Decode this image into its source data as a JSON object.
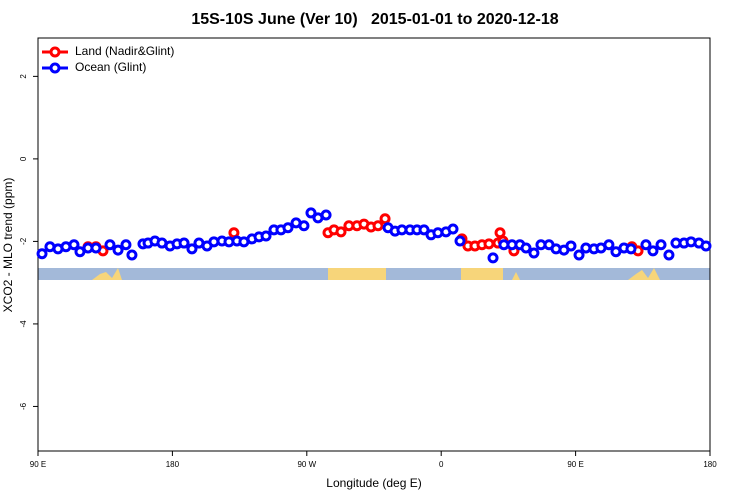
{
  "chart_data": {
    "type": "scatter",
    "title": "15S-10S June (Ver 10)   2015-01-01 to 2020-12-18",
    "x_label": "Longitude (deg E)",
    "y_label": "XCO2 - MLO trend (ppm)",
    "xlim": [
      90,
      540
    ],
    "xticks": [
      {
        "value": 90,
        "label": "90 E"
      },
      {
        "value": 180,
        "label": "180"
      },
      {
        "value": 270,
        "label": "90 W"
      },
      {
        "value": 360,
        "label": "0"
      },
      {
        "value": 450,
        "label": "90 E"
      },
      {
        "value": 540,
        "label": "180"
      }
    ],
    "ylim": [
      -7.08,
      2.93
    ],
    "yticks": [
      2,
      0,
      -2,
      -4,
      -6
    ],
    "legend": "top-left",
    "series": [
      {
        "name": "Land (Nadir&Glint)",
        "color": "#ff0000",
        "x": [
          123.5,
          128.8,
          133.5,
          221.2,
          284.2,
          288.2,
          292.9,
          298.2,
          303.6,
          308.3,
          313.0,
          317.7,
          322.4,
          373.9,
          377.9,
          382.6,
          387.3,
          392.0,
          398.0,
          399.4,
          401.4,
          408.7,
          487.7,
          491.8
        ],
        "values": [
          -2.13,
          -2.13,
          -2.23,
          -1.79,
          -1.79,
          -1.72,
          -1.77,
          -1.62,
          -1.62,
          -1.58,
          -1.65,
          -1.62,
          -1.45,
          -1.94,
          -2.11,
          -2.11,
          -2.08,
          -2.06,
          -2.04,
          -1.79,
          -1.99,
          -2.23,
          -2.13,
          -2.23
        ]
      },
      {
        "name": "Ocean (Glint)",
        "color": "#0000ff",
        "x": [
          92.7,
          98.0,
          103.4,
          108.7,
          114.1,
          118.1,
          123.5,
          128.8,
          138.2,
          143.6,
          148.9,
          152.9,
          160.3,
          163.7,
          168.3,
          173.0,
          178.4,
          183.1,
          187.8,
          193.1,
          197.8,
          203.2,
          207.8,
          213.2,
          217.9,
          223.2,
          227.9,
          233.3,
          238.0,
          242.7,
          248.0,
          252.7,
          257.4,
          262.8,
          268.1,
          272.8,
          277.5,
          282.9,
          324.4,
          329.1,
          333.7,
          339.1,
          343.8,
          348.5,
          353.2,
          357.8,
          363.2,
          367.9,
          372.6,
          394.7,
          402.0,
          407.4,
          412.7,
          416.8,
          422.1,
          426.8,
          432.2,
          436.9,
          442.2,
          446.9,
          452.3,
          456.9,
          462.3,
          467.0,
          472.3,
          477.0,
          482.4,
          487.1,
          497.1,
          501.8,
          507.2,
          512.5,
          517.2,
          522.6,
          527.3,
          532.6,
          537.3
        ],
        "values": [
          -2.3,
          -2.13,
          -2.18,
          -2.13,
          -2.08,
          -2.25,
          -2.16,
          -2.16,
          -2.08,
          -2.21,
          -2.08,
          -2.33,
          -2.06,
          -2.04,
          -1.99,
          -2.04,
          -2.11,
          -2.06,
          -2.04,
          -2.18,
          -2.04,
          -2.11,
          -2.01,
          -1.99,
          -2.01,
          -1.99,
          -2.01,
          -1.94,
          -1.89,
          -1.87,
          -1.72,
          -1.72,
          -1.67,
          -1.55,
          -1.62,
          -1.31,
          -1.43,
          -1.36,
          -1.67,
          -1.75,
          -1.72,
          -1.72,
          -1.72,
          -1.72,
          -1.84,
          -1.79,
          -1.77,
          -1.7,
          -1.99,
          -2.4,
          -2.08,
          -2.08,
          -2.08,
          -2.16,
          -2.28,
          -2.08,
          -2.08,
          -2.18,
          -2.21,
          -2.11,
          -2.33,
          -2.16,
          -2.18,
          -2.16,
          -2.08,
          -2.25,
          -2.16,
          -2.18,
          -2.08,
          -2.23,
          -2.08,
          -2.33,
          -2.04,
          -2.04,
          -2.01,
          -2.04,
          -2.11
        ]
      }
    ]
  }
}
